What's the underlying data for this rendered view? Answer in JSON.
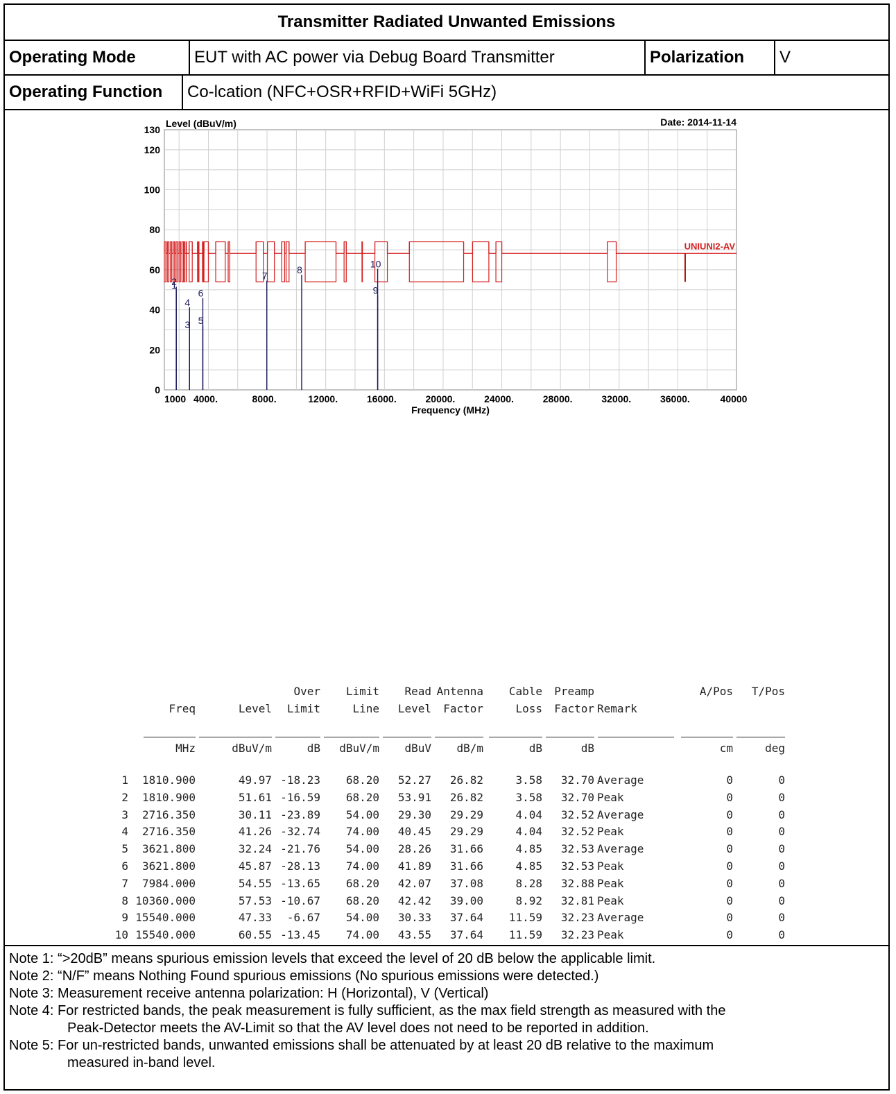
{
  "header": {
    "title": "Transmitter Radiated Unwanted Emissions",
    "operating_mode_label": "Operating Mode",
    "operating_mode_value": "EUT with AC power via Debug Board Transmitter",
    "polarization_label": "Polarization",
    "polarization_value": "V",
    "operating_function_label": "Operating Function",
    "operating_function_value": "Co-lcation (NFC+OSR+RFID+WiFi 5GHz)"
  },
  "chart_data": {
    "type": "line",
    "ylabel": "Level (dBuV/m)",
    "xlabel": "Frequency (MHz)",
    "date_text": "Date: 2014-11-14",
    "limit_label": "UNIUNI2-AV",
    "xlim": [
      1000,
      40000
    ],
    "ylim": [
      0,
      130
    ],
    "x_tick_labels": [
      "1000",
      "4000.",
      "8000.",
      "12000.",
      "16000.",
      "20000.",
      "24000.",
      "28000.",
      "32000.",
      "36000.",
      "40000"
    ],
    "x_tick_values": [
      1000,
      4000,
      8000,
      12000,
      16000,
      20000,
      24000,
      28000,
      32000,
      36000,
      40000
    ],
    "y_ticks": [
      0,
      20,
      40,
      60,
      80,
      100,
      120,
      130
    ],
    "grid": true,
    "limit_upper": 74,
    "limit_lower": 54,
    "limit_unrestricted": 68.2,
    "restricted_bands": [
      [
        1000,
        1100
      ],
      [
        1200,
        1300
      ],
      [
        1400,
        1500
      ],
      [
        1600,
        1700
      ],
      [
        1800,
        1900
      ],
      [
        2000,
        2100
      ],
      [
        2200,
        2300
      ],
      [
        2310,
        2390
      ],
      [
        2483.5,
        2500
      ],
      [
        2690,
        2900
      ],
      [
        3260,
        3267
      ],
      [
        3332,
        3339
      ],
      [
        3345.8,
        3358
      ],
      [
        3600,
        3650
      ],
      [
        3700,
        4000
      ],
      [
        4500,
        5150
      ],
      [
        5350,
        5460
      ],
      [
        7250,
        7750
      ],
      [
        8025,
        8500
      ],
      [
        9000,
        9200
      ],
      [
        9300,
        9500
      ],
      [
        10600,
        12700
      ],
      [
        13250,
        13400
      ],
      [
        14470,
        14500
      ],
      [
        15350,
        16200
      ],
      [
        17700,
        21400
      ],
      [
        22010,
        23120
      ],
      [
        23600,
        24000
      ],
      [
        31200,
        31800
      ]
    ],
    "markers": [
      {
        "id": "1",
        "freq": 1810.9,
        "level": 49.97
      },
      {
        "id": "2",
        "freq": 1810.9,
        "level": 51.61
      },
      {
        "id": "3",
        "freq": 2716.35,
        "level": 30.11
      },
      {
        "id": "4",
        "freq": 2716.35,
        "level": 41.26
      },
      {
        "id": "5",
        "freq": 3621.8,
        "level": 32.24
      },
      {
        "id": "6",
        "freq": 3621.8,
        "level": 45.87
      },
      {
        "id": "7",
        "freq": 7984.0,
        "level": 54.55
      },
      {
        "id": "8",
        "freq": 10360.0,
        "level": 57.53
      },
      {
        "id": "9",
        "freq": 15540.0,
        "level": 47.33
      },
      {
        "id": "10",
        "freq": 15540.0,
        "level": 60.55
      }
    ],
    "fundamental_spike": {
      "freq": 36500,
      "level": 54
    }
  },
  "table": {
    "header_line1": [
      "",
      "",
      "Over",
      "Limit",
      "Read",
      "Antenna",
      "Cable",
      "Preamp",
      "",
      "A/Pos",
      "T/Pos"
    ],
    "header_line2": [
      "Freq",
      "Level",
      "Limit",
      "Line",
      "Level",
      "Factor",
      "Loss",
      "Factor",
      "Remark",
      "",
      ""
    ],
    "units": [
      "MHz",
      "dBuV/m",
      "dB",
      "dBuV/m",
      "dBuV",
      "dB/m",
      "dB",
      "dB",
      "",
      "cm",
      "deg"
    ],
    "rows": [
      [
        "1",
        "1810.900",
        "49.97",
        "-18.23",
        "68.20",
        "52.27",
        "26.82",
        "3.58",
        "32.70",
        "Average",
        "0",
        "0"
      ],
      [
        "2",
        "1810.900",
        "51.61",
        "-16.59",
        "68.20",
        "53.91",
        "26.82",
        "3.58",
        "32.70",
        "Peak",
        "0",
        "0"
      ],
      [
        "3",
        "2716.350",
        "30.11",
        "-23.89",
        "54.00",
        "29.30",
        "29.29",
        "4.04",
        "32.52",
        "Average",
        "0",
        "0"
      ],
      [
        "4",
        "2716.350",
        "41.26",
        "-32.74",
        "74.00",
        "40.45",
        "29.29",
        "4.04",
        "32.52",
        "Peak",
        "0",
        "0"
      ],
      [
        "5",
        "3621.800",
        "32.24",
        "-21.76",
        "54.00",
        "28.26",
        "31.66",
        "4.85",
        "32.53",
        "Average",
        "0",
        "0"
      ],
      [
        "6",
        "3621.800",
        "45.87",
        "-28.13",
        "74.00",
        "41.89",
        "31.66",
        "4.85",
        "32.53",
        "Peak",
        "0",
        "0"
      ],
      [
        "7",
        "7984.000",
        "54.55",
        "-13.65",
        "68.20",
        "42.07",
        "37.08",
        "8.28",
        "32.88",
        "Peak",
        "0",
        "0"
      ],
      [
        "8",
        "10360.000",
        "57.53",
        "-10.67",
        "68.20",
        "42.42",
        "39.00",
        "8.92",
        "32.81",
        "Peak",
        "0",
        "0"
      ],
      [
        "9",
        "15540.000",
        "47.33",
        "-6.67",
        "54.00",
        "30.33",
        "37.64",
        "11.59",
        "32.23",
        "Average",
        "0",
        "0"
      ],
      [
        "10",
        "15540.000",
        "60.55",
        "-13.45",
        "74.00",
        "43.55",
        "37.64",
        "11.59",
        "32.23",
        "Peak",
        "0",
        "0"
      ]
    ]
  },
  "notes": [
    {
      "label": "Note 1:",
      "text": "“>20dB” means spurious emission levels that exceed the level of 20 dB below the applicable limit.",
      "cont": ""
    },
    {
      "label": "Note 2:",
      "text": "“N/F” means Nothing Found spurious emissions (No spurious emissions were detected.)",
      "cont": ""
    },
    {
      "label": "Note 3:",
      "text": "Measurement receive antenna polarization: H (Horizontal), V (Vertical)",
      "cont": ""
    },
    {
      "label": "Note 4:",
      "text": "For restricted bands, the peak measurement is fully sufficient, as the max field strength as measured with the",
      "cont": "Peak-Detector meets the AV-Limit so that the AV level does not need to be reported in addition."
    },
    {
      "label": "Note 5:",
      "text": "For un-restricted bands, unwanted emissions shall be attenuated by at least 20 dB relative to the maximum",
      "cont": "measured in-band level."
    }
  ]
}
